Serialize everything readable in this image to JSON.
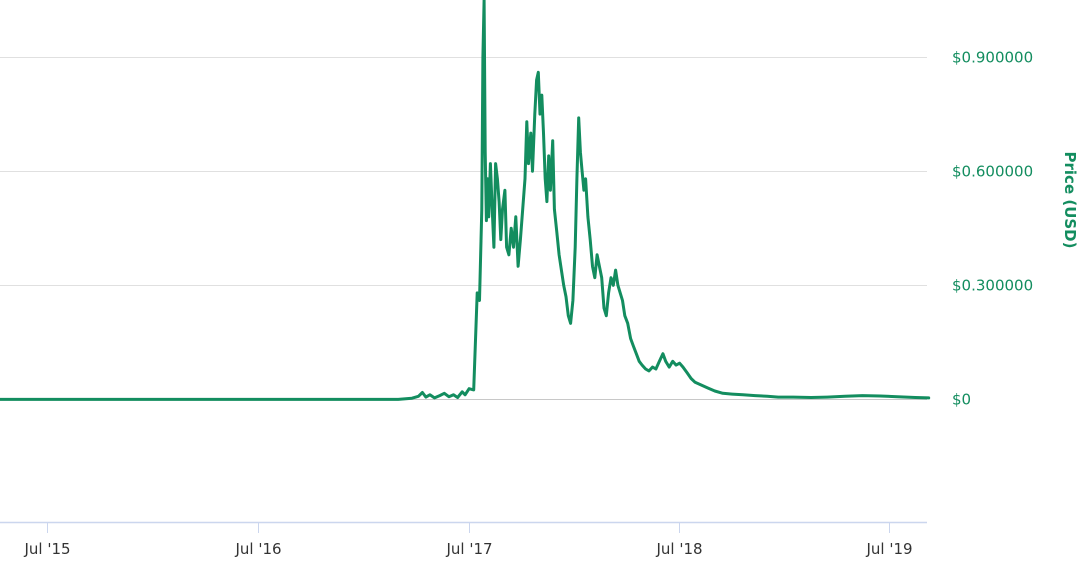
{
  "chart_data": {
    "type": "line",
    "ylabel": "Price (USD)",
    "ylim": [
      -0.325,
      1.05
    ],
    "grid": true,
    "legend": "none",
    "color": "#138d5f",
    "y_ticks": [
      {
        "value": 0,
        "label": "$0"
      },
      {
        "value": 0.3,
        "label": "$0.300000"
      },
      {
        "value": 0.6,
        "label": "$0.600000"
      },
      {
        "value": 0.9,
        "label": "$0.900000"
      }
    ],
    "x_ticks": [
      {
        "date": "2015-07-01",
        "label": "Jul '15"
      },
      {
        "date": "2016-07-01",
        "label": "Jul '16"
      },
      {
        "date": "2017-07-01",
        "label": "Jul '17"
      },
      {
        "date": "2018-07-01",
        "label": "Jul '18"
      },
      {
        "date": "2019-07-01",
        "label": "Jul '19"
      }
    ],
    "series": [
      {
        "points": [
          [
            "2015-01-01",
            0.0
          ],
          [
            "2015-07-01",
            0.0
          ],
          [
            "2016-01-01",
            0.0
          ],
          [
            "2016-07-01",
            0.0
          ],
          [
            "2017-01-01",
            0.0
          ],
          [
            "2017-03-01",
            0.0
          ],
          [
            "2017-03-25",
            0.003
          ],
          [
            "2017-04-05",
            0.008
          ],
          [
            "2017-04-12",
            0.018
          ],
          [
            "2017-04-18",
            0.006
          ],
          [
            "2017-04-25",
            0.012
          ],
          [
            "2017-05-03",
            0.004
          ],
          [
            "2017-05-12",
            0.01
          ],
          [
            "2017-05-20",
            0.016
          ],
          [
            "2017-05-28",
            0.007
          ],
          [
            "2017-06-05",
            0.012
          ],
          [
            "2017-06-12",
            0.005
          ],
          [
            "2017-06-20",
            0.02
          ],
          [
            "2017-06-25",
            0.012
          ],
          [
            "2017-07-02",
            0.028
          ],
          [
            "2017-07-10",
            0.025
          ],
          [
            "2017-07-16",
            0.28
          ],
          [
            "2017-07-20",
            0.26
          ],
          [
            "2017-07-24",
            0.5
          ],
          [
            "2017-07-26",
            0.9
          ],
          [
            "2017-07-28",
            1.05
          ],
          [
            "2017-07-30",
            0.65
          ],
          [
            "2017-08-01",
            0.47
          ],
          [
            "2017-08-03",
            0.58
          ],
          [
            "2017-08-05",
            0.48
          ],
          [
            "2017-08-08",
            0.62
          ],
          [
            "2017-08-11",
            0.5
          ],
          [
            "2017-08-14",
            0.4
          ],
          [
            "2017-08-17",
            0.62
          ],
          [
            "2017-08-20",
            0.58
          ],
          [
            "2017-08-23",
            0.52
          ],
          [
            "2017-08-26",
            0.42
          ],
          [
            "2017-08-29",
            0.5
          ],
          [
            "2017-09-02",
            0.55
          ],
          [
            "2017-09-05",
            0.4
          ],
          [
            "2017-09-09",
            0.38
          ],
          [
            "2017-09-13",
            0.45
          ],
          [
            "2017-09-17",
            0.4
          ],
          [
            "2017-09-21",
            0.48
          ],
          [
            "2017-09-25",
            0.35
          ],
          [
            "2017-09-29",
            0.42
          ],
          [
            "2017-10-03",
            0.5
          ],
          [
            "2017-10-07",
            0.58
          ],
          [
            "2017-10-10",
            0.73
          ],
          [
            "2017-10-13",
            0.62
          ],
          [
            "2017-10-17",
            0.7
          ],
          [
            "2017-10-20",
            0.6
          ],
          [
            "2017-10-24",
            0.75
          ],
          [
            "2017-10-27",
            0.84
          ],
          [
            "2017-10-30",
            0.86
          ],
          [
            "2017-11-02",
            0.75
          ],
          [
            "2017-11-05",
            0.8
          ],
          [
            "2017-11-08",
            0.7
          ],
          [
            "2017-11-11",
            0.58
          ],
          [
            "2017-11-14",
            0.52
          ],
          [
            "2017-11-17",
            0.64
          ],
          [
            "2017-11-20",
            0.55
          ],
          [
            "2017-11-24",
            0.68
          ],
          [
            "2017-11-27",
            0.5
          ],
          [
            "2017-12-01",
            0.44
          ],
          [
            "2017-12-05",
            0.38
          ],
          [
            "2017-12-09",
            0.34
          ],
          [
            "2017-12-13",
            0.3
          ],
          [
            "2017-12-17",
            0.27
          ],
          [
            "2017-12-21",
            0.22
          ],
          [
            "2017-12-25",
            0.2
          ],
          [
            "2017-12-29",
            0.26
          ],
          [
            "2018-01-02",
            0.4
          ],
          [
            "2018-01-05",
            0.58
          ],
          [
            "2018-01-08",
            0.74
          ],
          [
            "2018-01-11",
            0.65
          ],
          [
            "2018-01-14",
            0.6
          ],
          [
            "2018-01-17",
            0.55
          ],
          [
            "2018-01-20",
            0.58
          ],
          [
            "2018-01-24",
            0.48
          ],
          [
            "2018-01-28",
            0.42
          ],
          [
            "2018-02-01",
            0.35
          ],
          [
            "2018-02-05",
            0.32
          ],
          [
            "2018-02-09",
            0.38
          ],
          [
            "2018-02-13",
            0.35
          ],
          [
            "2018-02-17",
            0.32
          ],
          [
            "2018-02-21",
            0.24
          ],
          [
            "2018-02-25",
            0.22
          ],
          [
            "2018-03-01",
            0.28
          ],
          [
            "2018-03-05",
            0.32
          ],
          [
            "2018-03-09",
            0.3
          ],
          [
            "2018-03-13",
            0.34
          ],
          [
            "2018-03-17",
            0.3
          ],
          [
            "2018-03-21",
            0.28
          ],
          [
            "2018-03-25",
            0.26
          ],
          [
            "2018-03-29",
            0.22
          ],
          [
            "2018-04-03",
            0.2
          ],
          [
            "2018-04-08",
            0.16
          ],
          [
            "2018-04-13",
            0.14
          ],
          [
            "2018-04-18",
            0.12
          ],
          [
            "2018-04-23",
            0.1
          ],
          [
            "2018-04-28",
            0.09
          ],
          [
            "2018-05-04",
            0.08
          ],
          [
            "2018-05-10",
            0.075
          ],
          [
            "2018-05-16",
            0.085
          ],
          [
            "2018-05-22",
            0.08
          ],
          [
            "2018-05-28",
            0.1
          ],
          [
            "2018-06-03",
            0.12
          ],
          [
            "2018-06-08",
            0.1
          ],
          [
            "2018-06-14",
            0.085
          ],
          [
            "2018-06-20",
            0.1
          ],
          [
            "2018-06-26",
            0.09
          ],
          [
            "2018-07-02",
            0.095
          ],
          [
            "2018-07-08",
            0.085
          ],
          [
            "2018-07-15",
            0.07
          ],
          [
            "2018-07-22",
            0.055
          ],
          [
            "2018-07-29",
            0.045
          ],
          [
            "2018-08-08",
            0.038
          ],
          [
            "2018-08-20",
            0.03
          ],
          [
            "2018-09-01",
            0.022
          ],
          [
            "2018-09-15",
            0.016
          ],
          [
            "2018-10-01",
            0.014
          ],
          [
            "2018-10-20",
            0.012
          ],
          [
            "2018-11-10",
            0.01
          ],
          [
            "2018-12-01",
            0.008
          ],
          [
            "2018-12-20",
            0.006
          ],
          [
            "2019-01-15",
            0.006
          ],
          [
            "2019-02-15",
            0.005
          ],
          [
            "2019-03-15",
            0.006
          ],
          [
            "2019-04-15",
            0.008
          ],
          [
            "2019-05-15",
            0.01
          ],
          [
            "2019-06-15",
            0.009
          ],
          [
            "2019-07-15",
            0.007
          ],
          [
            "2019-08-15",
            0.005
          ],
          [
            "2019-09-07",
            0.004
          ]
        ]
      }
    ]
  }
}
